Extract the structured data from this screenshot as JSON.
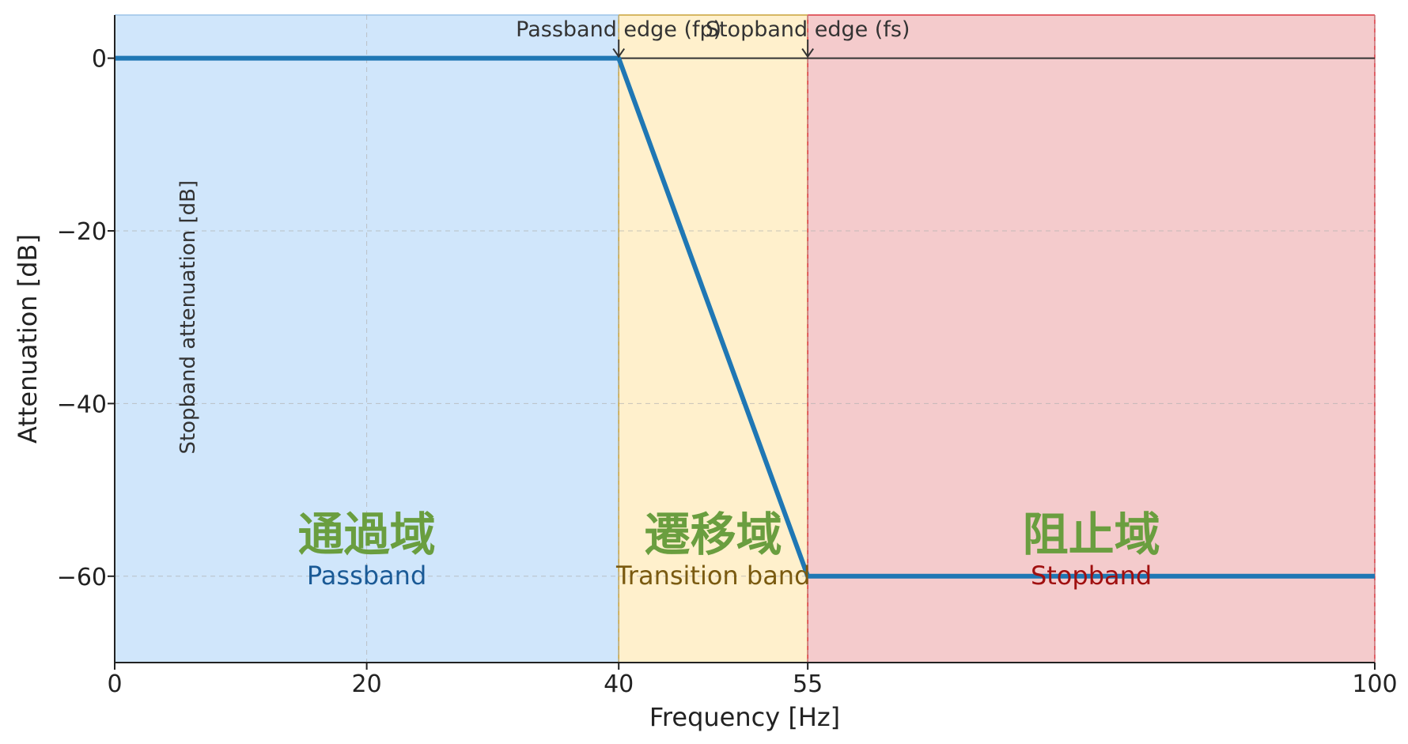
{
  "chart_data": {
    "type": "line",
    "xlabel": "Frequency [Hz]",
    "ylabel": "Attenuation [dB]",
    "xlim": [
      0,
      100
    ],
    "ylim": [
      -70,
      5
    ],
    "x_ticks": [
      0,
      20,
      40,
      55,
      100
    ],
    "y_ticks": [
      0,
      -20,
      -40,
      -60
    ],
    "x_tick_labels": [
      "0",
      "20",
      "40",
      "55",
      "100"
    ],
    "y_tick_labels": [
      "0",
      "−20",
      "−40",
      "−60"
    ],
    "grid": true,
    "series": [
      {
        "x": [
          0,
          40,
          55,
          100
        ],
        "y": [
          0,
          0,
          -60,
          -60
        ],
        "color": "#1f77b4"
      }
    ],
    "reference_line": {
      "y": 0,
      "color": "#333333"
    },
    "regions": [
      {
        "x0": 0,
        "x1": 40,
        "fill": "#d0e6fb",
        "edge": "#9cc3e8",
        "label_jp": "通過域",
        "label_en": "Passband",
        "jp_color": "#6a9e3f",
        "en_color": "#1a5a96"
      },
      {
        "x0": 40,
        "x1": 55,
        "fill": "#fff0cc",
        "edge": "#c9a23a",
        "label_jp": "遷移域",
        "label_en": "Transition band",
        "jp_color": "#6a9e3f",
        "en_color": "#7a5a10"
      },
      {
        "x0": 55,
        "x1": 100,
        "fill": "#f4cbcc",
        "edge": "#d9363e",
        "label_jp": "阻止域",
        "label_en": "Stopband",
        "jp_color": "#6a9e3f",
        "en_color": "#a01010"
      }
    ],
    "annotations": [
      {
        "text": "Passband edge (fp)",
        "x": 40,
        "y": 0
      },
      {
        "text": "Stopband edge (fs)",
        "x": 55,
        "y": 0
      }
    ],
    "vertical_annotation": {
      "text": "Stopband attenuation [dB]",
      "x": 5,
      "y": -30
    }
  }
}
